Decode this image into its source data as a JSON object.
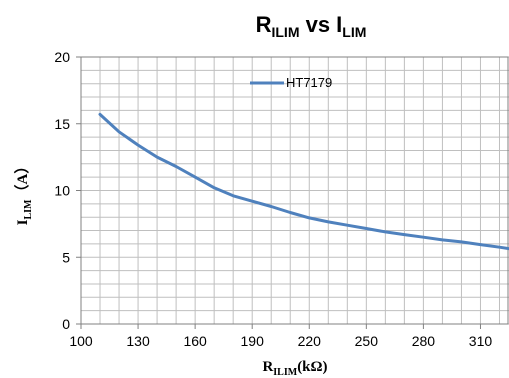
{
  "chart_data": {
    "type": "line",
    "title": {
      "main": "R",
      "sub1": "ILIM",
      "mid": " vs I",
      "sub2": "LIM"
    },
    "xlabel": {
      "main": "R",
      "sub": "ILIM",
      "rest": "(kΩ)"
    },
    "ylabel": {
      "main": "I",
      "sub": "LIM",
      "rest": "（A）"
    },
    "xlim": [
      100,
      325
    ],
    "ylim": [
      0,
      20
    ],
    "x_ticks": [
      "100",
      "130",
      "160",
      "190",
      "220",
      "250",
      "280",
      "310"
    ],
    "y_ticks": [
      "0",
      "5",
      "10",
      "15",
      "20"
    ],
    "grid": true,
    "legend_position": "top-center",
    "series": [
      {
        "name": "HT7179",
        "color": "#4f81bd",
        "x": [
          110,
          120,
          130,
          140,
          150,
          160,
          170,
          180,
          190,
          200,
          210,
          220,
          230,
          240,
          250,
          260,
          270,
          280,
          290,
          300,
          310,
          320,
          325
        ],
        "y": [
          15.7,
          14.4,
          13.4,
          12.5,
          11.8,
          11.0,
          10.2,
          9.6,
          9.2,
          8.8,
          8.35,
          7.95,
          7.65,
          7.4,
          7.15,
          6.9,
          6.7,
          6.5,
          6.3,
          6.15,
          5.95,
          5.75,
          5.65
        ]
      }
    ]
  }
}
